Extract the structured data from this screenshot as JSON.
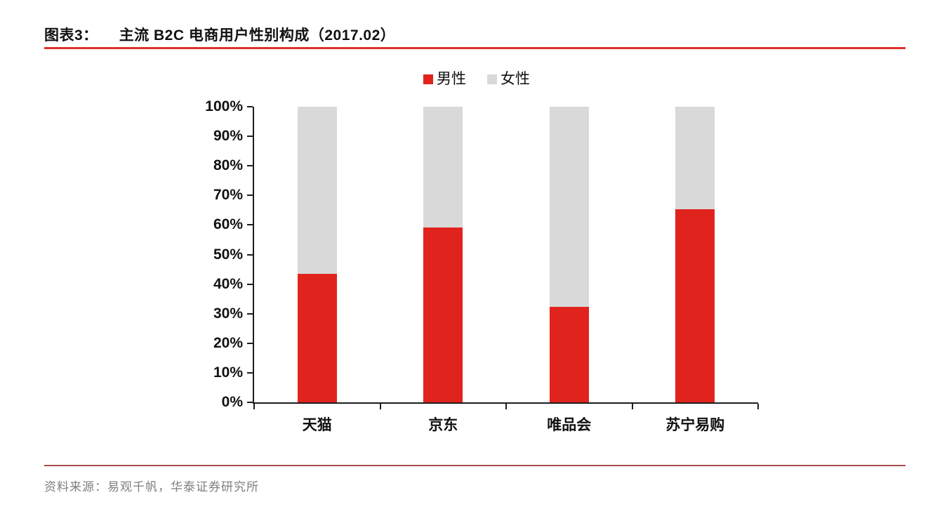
{
  "header": {
    "figure_label": "图表3：",
    "title": "主流 B2C 电商用户性别构成（2017.02）",
    "rule_color": "#e0312b"
  },
  "footer": {
    "source_label": "资料来源：易观千帆，华泰证券研究所",
    "rule_color": "#a8514e",
    "text_color": "#7f7f7f"
  },
  "chart_data": {
    "type": "bar",
    "stacked": true,
    "title": "主流 B2C 电商用户性别构成（2017.02）",
    "categories": [
      "天猫",
      "京东",
      "唯品会",
      "苏宁易购"
    ],
    "series": [
      {
        "name": "男性",
        "color": "#e1231d",
        "values": [
          43.4,
          59.1,
          32.3,
          65.4
        ]
      },
      {
        "name": "女性",
        "color": "#d9d9d9",
        "values": [
          56.6,
          40.9,
          67.7,
          34.6
        ]
      }
    ],
    "xlabel": "",
    "ylabel": "",
    "ylim": [
      0,
      100
    ],
    "ytick_step": 10,
    "ytick_suffix": "%",
    "yticks": [
      "0%",
      "10%",
      "20%",
      "30%",
      "40%",
      "50%",
      "60%",
      "70%",
      "80%",
      "90%",
      "100%"
    ],
    "legend_position": "top-center",
    "grid": false,
    "axis_color": "#1d1d1d"
  }
}
